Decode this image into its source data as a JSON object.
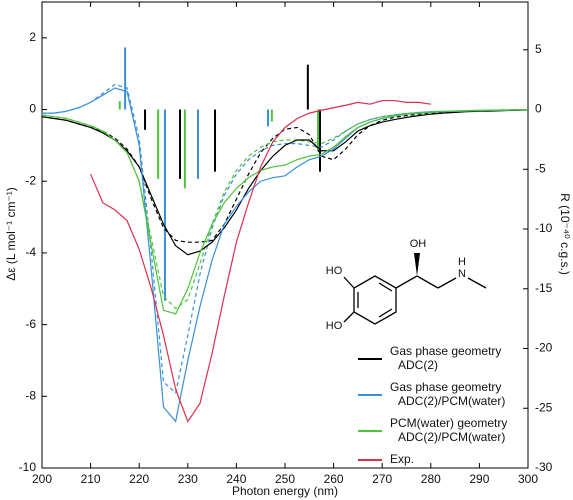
{
  "chart_data": {
    "type": "line",
    "xlabel": "Photon energy (nm)",
    "ylabel": "Δε (L mol⁻¹ cm⁻¹)",
    "y2label": "R (10⁻⁴⁰ c.g.s.)",
    "xlim": [
      200,
      300
    ],
    "xticks": [
      200,
      210,
      220,
      230,
      240,
      250,
      260,
      270,
      280,
      290,
      300
    ],
    "ylim": [
      -10,
      3
    ],
    "yticks": [
      -10,
      -8,
      -6,
      -4,
      -2,
      0,
      2
    ],
    "y2lim": [
      -30,
      9
    ],
    "y2ticks": [
      -30,
      -25,
      -20,
      -15,
      -10,
      -5,
      0,
      5
    ],
    "legend": "lower right",
    "x": [
      200,
      202.5,
      205,
      207.5,
      210,
      212.5,
      215,
      217.5,
      220,
      222.5,
      225,
      227.5,
      230,
      232.5,
      235,
      237.5,
      240,
      242.5,
      245,
      247.5,
      250,
      252.5,
      255,
      257.5,
      260,
      262.5,
      265,
      267.5,
      270,
      272.5,
      275,
      277.5,
      280,
      282.5,
      285,
      287.5,
      290,
      292.5,
      295,
      297.5,
      300
    ],
    "series": [
      {
        "name": "Gas phase geometry\nADC(2)",
        "color": "#000000",
        "values": [
          -0.2,
          -0.25,
          -0.3,
          -0.4,
          -0.5,
          -0.65,
          -0.85,
          -1.15,
          -1.6,
          -2.4,
          -3.2,
          -3.8,
          -4.05,
          -3.95,
          -3.7,
          -3.3,
          -2.8,
          -2.2,
          -1.7,
          -1.3,
          -1.0,
          -0.85,
          -0.85,
          -1.15,
          -1.15,
          -0.9,
          -0.6,
          -0.45,
          -0.35,
          -0.28,
          -0.22,
          -0.17,
          -0.13,
          -0.1,
          -0.08,
          -0.06,
          -0.05,
          -0.04,
          -0.03,
          -0.02,
          -0.01
        ]
      },
      {
        "name": "Gas phase geometry\nADC(2)/PCM(water)",
        "color": "#3a8fd9",
        "values": [
          -0.1,
          -0.1,
          -0.05,
          0.05,
          0.2,
          0.4,
          0.6,
          0.5,
          -1.0,
          -4.5,
          -8.3,
          -8.7,
          -7.0,
          -5.5,
          -4.2,
          -3.2,
          -2.7,
          -2.3,
          -2.0,
          -1.9,
          -1.85,
          -1.6,
          -1.4,
          -1.3,
          -1.1,
          -0.8,
          -0.5,
          -0.35,
          -0.25,
          -0.18,
          -0.13,
          -0.1,
          -0.08,
          -0.06,
          -0.05,
          -0.04,
          -0.03,
          -0.02,
          -0.02,
          -0.01,
          0
        ]
      },
      {
        "name": "PCM(water) geometry\nADC(2)/PCM(water)",
        "color": "#4cc43a",
        "values": [
          -0.15,
          -0.2,
          -0.25,
          -0.35,
          -0.45,
          -0.6,
          -0.85,
          -1.2,
          -2.0,
          -3.8,
          -5.6,
          -5.7,
          -5.0,
          -4.0,
          -3.2,
          -2.6,
          -2.2,
          -1.9,
          -1.7,
          -1.6,
          -1.55,
          -1.4,
          -1.3,
          -1.25,
          -1.05,
          -0.75,
          -0.5,
          -0.35,
          -0.25,
          -0.18,
          -0.13,
          -0.1,
          -0.08,
          -0.06,
          -0.05,
          -0.04,
          -0.03,
          -0.02,
          -0.02,
          -0.01,
          0
        ]
      },
      {
        "name": "Exp.",
        "color": "#d9304a",
        "values": [
          null,
          null,
          null,
          null,
          -1.8,
          -2.6,
          -2.8,
          -3.1,
          -3.9,
          -5.0,
          -6.3,
          -7.8,
          -8.7,
          -8.2,
          -6.8,
          -5.2,
          -3.7,
          -2.6,
          -1.6,
          -0.9,
          -0.5,
          -0.25,
          -0.1,
          -0.02,
          0.05,
          0.12,
          0.2,
          0.15,
          0.25,
          0.25,
          0.2,
          0.2,
          0.15,
          null,
          null,
          null,
          null,
          null,
          null,
          null,
          null
        ]
      }
    ],
    "dashed_series": [
      {
        "color": "#000000",
        "values": [
          -0.2,
          -0.25,
          -0.3,
          -0.4,
          -0.5,
          -0.6,
          -0.8,
          -1.1,
          -1.6,
          -2.5,
          -3.3,
          -3.65,
          -3.7,
          -3.7,
          -3.65,
          -3.2,
          -2.5,
          -1.8,
          -1.2,
          -0.8,
          -0.55,
          -0.5,
          -0.7,
          -1.3,
          -1.4,
          -1.1,
          -0.7,
          -0.45,
          -0.3,
          -0.22,
          -0.17,
          -0.13,
          -0.1,
          -0.08,
          -0.06,
          -0.05,
          -0.04,
          -0.03,
          -0.02,
          -0.01,
          0
        ]
      },
      {
        "color": "#3a8fd9",
        "values": [
          -0.1,
          -0.1,
          -0.05,
          0.05,
          0.2,
          0.45,
          0.7,
          0.6,
          -0.8,
          -4.0,
          -7.6,
          -7.9,
          -6.3,
          -4.6,
          -3.3,
          -2.4,
          -1.8,
          -1.4,
          -1.15,
          -1.0,
          -0.95,
          -0.95,
          -1.0,
          -1.05,
          -0.85,
          -0.6,
          -0.4,
          -0.28,
          -0.2,
          -0.15,
          -0.11,
          -0.08,
          -0.06,
          -0.05,
          -0.04,
          -0.03,
          -0.02,
          -0.02,
          -0.01,
          -0.01,
          0
        ]
      },
      {
        "color": "#4cc43a",
        "values": [
          -0.15,
          -0.2,
          -0.25,
          -0.35,
          -0.45,
          -0.6,
          -0.85,
          -1.2,
          -2.0,
          -3.6,
          -5.2,
          -5.55,
          -5.3,
          -4.3,
          -3.2,
          -2.3,
          -1.7,
          -1.3,
          -1.05,
          -0.9,
          -0.85,
          -0.85,
          -0.9,
          -0.95,
          -0.8,
          -0.6,
          -0.4,
          -0.28,
          -0.2,
          -0.15,
          -0.11,
          -0.08,
          -0.06,
          -0.05,
          -0.04,
          -0.03,
          -0.02,
          -0.02,
          -0.01,
          -0.01,
          0
        ]
      }
    ],
    "sticks": [
      {
        "color": "#000000",
        "axis": "y2",
        "x": [
          221.2,
          228.4,
          235.6,
          254.7,
          257.2
        ],
        "values": [
          -1.7,
          -5.8,
          -5.2,
          3.75,
          -5.2
        ]
      },
      {
        "color": "#3a8fd9",
        "axis": "y2",
        "x": [
          217.1,
          225.3,
          232.1,
          246.5
        ],
        "values": [
          5.2,
          -16,
          -5.8,
          -1.4
        ]
      },
      {
        "color": "#4cc43a",
        "axis": "y2",
        "x": [
          216.0,
          223.9,
          229.4,
          247.3,
          256.8
        ],
        "values": [
          0.7,
          -5.8,
          -6.6,
          -1,
          -3.5
        ]
      }
    ],
    "structure_labels": [
      "HO",
      "HO",
      "OH",
      "H",
      "N"
    ]
  }
}
